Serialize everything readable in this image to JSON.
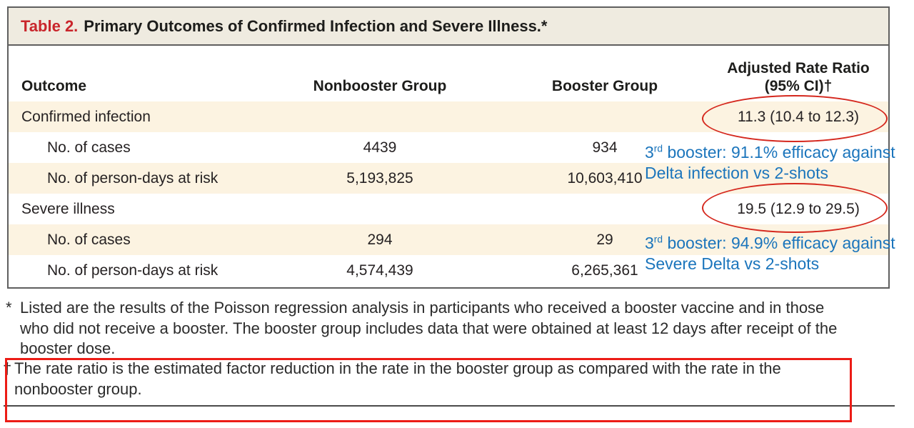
{
  "table": {
    "title_label": "Table 2.",
    "title_text": "Primary Outcomes of Confirmed Infection and Severe Illness.*",
    "header": {
      "outcome": "Outcome",
      "nonbooster": "Nonbooster Group",
      "booster": "Booster Group",
      "ratio_line1": "Adjusted Rate Ratio",
      "ratio_line2": "(95% CI)†"
    },
    "rows": [
      {
        "label": "Confirmed infection",
        "nonbooster": "",
        "booster": "",
        "ratio": "11.3 (10.4 to 12.3)"
      },
      {
        "label": "No. of cases",
        "nonbooster": "4439",
        "booster": "934",
        "ratio": ""
      },
      {
        "label": "No. of person-days at risk",
        "nonbooster": "5,193,825",
        "booster": "10,603,410",
        "ratio": ""
      },
      {
        "label": "Severe illness",
        "nonbooster": "",
        "booster": "",
        "ratio": "19.5 (12.9 to 29.5)"
      },
      {
        "label": "No. of cases",
        "nonbooster": "294",
        "booster": "29",
        "ratio": ""
      },
      {
        "label": "No. of person-days at risk",
        "nonbooster": "4,574,439",
        "booster": "6,265,361",
        "ratio": ""
      }
    ]
  },
  "annotations": {
    "infection": {
      "base": "3",
      "sup": "rd",
      "line1_rest": " booster: 91.1% efficacy against",
      "line2": "Delta infection vs 2-shots"
    },
    "severe": {
      "base": "3",
      "sup": "rd",
      "line1_rest": " booster: 94.9% efficacy against",
      "line2": "Severe Delta vs 2-shots"
    }
  },
  "footnotes": {
    "asterisk": {
      "marker": "*",
      "line1": "Listed are the results of the Poisson regression analysis in participants who received a booster vaccine and in those",
      "line2": "who did not receive a booster. The booster group includes data that were obtained at least 12 days after receipt of the",
      "line3": "booster dose."
    },
    "dagger": {
      "marker": "†",
      "line1": "The rate ratio is the estimated factor reduction in the rate in the booster group as compared with the rate in the",
      "line2": "nonbooster group."
    }
  },
  "colors": {
    "title_red": "#c9252b",
    "annotation_red": "#ec1c16",
    "annotation_blue": "#1b75bc",
    "row_shade": "#fcf3e1",
    "titlebar_bg": "#efebe0",
    "border_gray": "#5f5f5f"
  }
}
